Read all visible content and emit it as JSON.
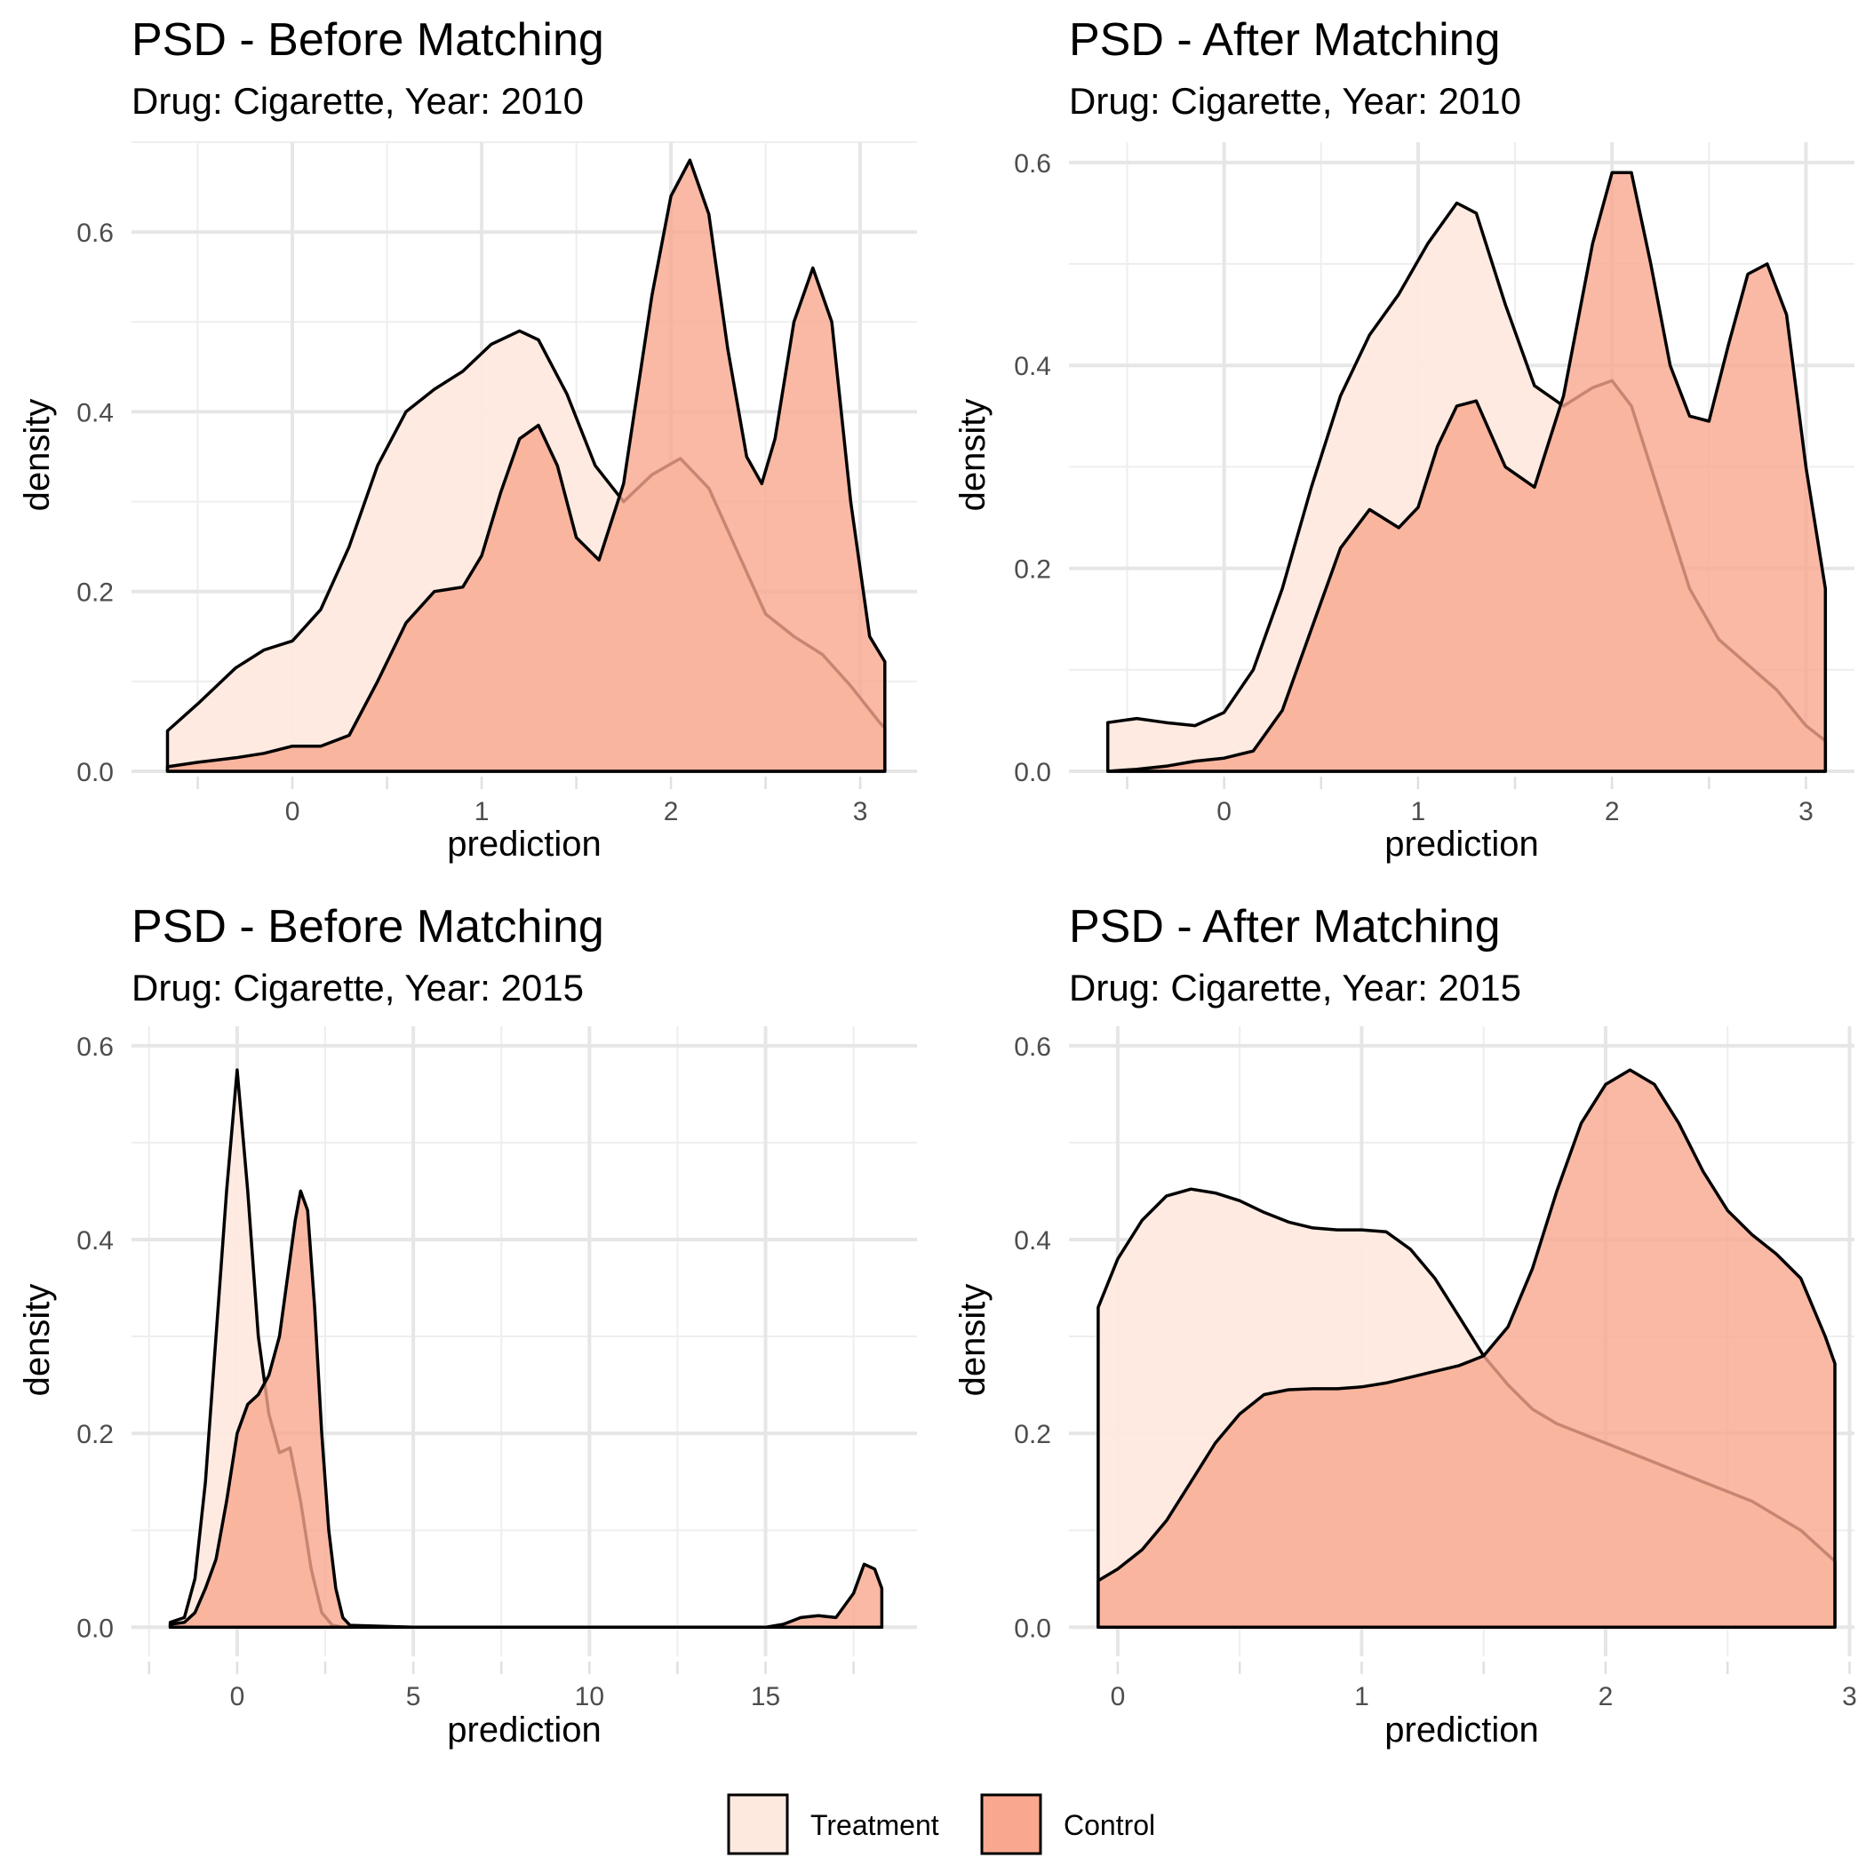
{
  "legend": {
    "items": [
      {
        "label": "Treatment",
        "color": "#FEE9DF"
      },
      {
        "label": "Control",
        "color": "#F9A88F"
      }
    ]
  },
  "chart_data": [
    {
      "type": "area",
      "title": "PSD - Before Matching",
      "subtitle": "Drug: Cigarette, Year: 2010",
      "xlabel": "prediction",
      "ylabel": "density",
      "xlim": [
        -0.85,
        3.3
      ],
      "ylim": [
        0,
        0.7
      ],
      "xticks": [
        0,
        1,
        2,
        3
      ],
      "xtick_labels": [
        "0",
        "1",
        "2",
        "3"
      ],
      "yticks": [
        0,
        0.2,
        0.4,
        0.6
      ],
      "ytick_labels": [
        "0.0",
        "0.2",
        "0.4",
        "0.6"
      ],
      "grid": true,
      "series": [
        {
          "name": "Treatment",
          "color": "#FEE9DF",
          "x": [
            -0.66,
            -0.5,
            -0.3,
            -0.15,
            0,
            0.15,
            0.3,
            0.45,
            0.6,
            0.75,
            0.9,
            1.05,
            1.2,
            1.3,
            1.45,
            1.6,
            1.75,
            1.9,
            2.05,
            2.2,
            2.35,
            2.5,
            2.65,
            2.8,
            2.95,
            3.1,
            3.13
          ],
          "y": [
            0.045,
            0.075,
            0.115,
            0.135,
            0.145,
            0.18,
            0.25,
            0.34,
            0.4,
            0.425,
            0.445,
            0.475,
            0.49,
            0.48,
            0.42,
            0.34,
            0.3,
            0.33,
            0.348,
            0.315,
            0.245,
            0.175,
            0.15,
            0.13,
            0.095,
            0.055,
            0.048
          ]
        },
        {
          "name": "Control",
          "color": "#F9A88F",
          "x": [
            -0.66,
            -0.5,
            -0.3,
            -0.15,
            0,
            0.15,
            0.3,
            0.45,
            0.6,
            0.75,
            0.9,
            1.0,
            1.1,
            1.2,
            1.3,
            1.4,
            1.5,
            1.62,
            1.75,
            1.9,
            2.0,
            2.1,
            2.2,
            2.3,
            2.4,
            2.48,
            2.55,
            2.65,
            2.75,
            2.85,
            2.95,
            3.05,
            3.13
          ],
          "y": [
            0.005,
            0.01,
            0.015,
            0.02,
            0.028,
            0.028,
            0.04,
            0.1,
            0.165,
            0.2,
            0.205,
            0.24,
            0.31,
            0.37,
            0.385,
            0.34,
            0.26,
            0.235,
            0.32,
            0.53,
            0.64,
            0.68,
            0.62,
            0.47,
            0.35,
            0.32,
            0.37,
            0.5,
            0.56,
            0.5,
            0.3,
            0.15,
            0.122
          ]
        }
      ]
    },
    {
      "type": "area",
      "title": "PSD - After Matching",
      "subtitle": "Drug: Cigarette, Year: 2010",
      "xlabel": "prediction",
      "ylabel": "density",
      "xlim": [
        -0.8,
        3.25
      ],
      "ylim": [
        0,
        0.62
      ],
      "xticks": [
        0,
        1,
        2,
        3
      ],
      "xtick_labels": [
        "0",
        "1",
        "2",
        "3"
      ],
      "yticks": [
        0,
        0.2,
        0.4,
        0.6
      ],
      "ytick_labels": [
        "0.0",
        "0.2",
        "0.4",
        "0.6"
      ],
      "grid": true,
      "series": [
        {
          "name": "Treatment",
          "color": "#FEE9DF",
          "x": [
            -0.6,
            -0.45,
            -0.3,
            -0.15,
            0,
            0.15,
            0.3,
            0.45,
            0.6,
            0.75,
            0.9,
            1.05,
            1.2,
            1.3,
            1.45,
            1.6,
            1.75,
            1.9,
            2.0,
            2.1,
            2.25,
            2.4,
            2.55,
            2.7,
            2.85,
            3.0,
            3.1
          ],
          "y": [
            0.048,
            0.052,
            0.048,
            0.045,
            0.058,
            0.1,
            0.18,
            0.28,
            0.37,
            0.43,
            0.47,
            0.52,
            0.56,
            0.55,
            0.46,
            0.38,
            0.36,
            0.378,
            0.385,
            0.36,
            0.27,
            0.18,
            0.13,
            0.105,
            0.08,
            0.045,
            0.03
          ]
        },
        {
          "name": "Control",
          "color": "#F9A88F",
          "x": [
            -0.6,
            -0.45,
            -0.3,
            -0.15,
            0,
            0.15,
            0.3,
            0.45,
            0.6,
            0.75,
            0.9,
            1.0,
            1.1,
            1.2,
            1.3,
            1.45,
            1.6,
            1.75,
            1.9,
            2.0,
            2.1,
            2.2,
            2.3,
            2.4,
            2.5,
            2.6,
            2.7,
            2.8,
            2.9,
            3.0,
            3.1
          ],
          "y": [
            0.0,
            0.002,
            0.005,
            0.01,
            0.013,
            0.02,
            0.06,
            0.14,
            0.22,
            0.258,
            0.24,
            0.26,
            0.32,
            0.36,
            0.365,
            0.3,
            0.28,
            0.37,
            0.52,
            0.59,
            0.59,
            0.5,
            0.4,
            0.35,
            0.345,
            0.42,
            0.49,
            0.5,
            0.45,
            0.3,
            0.18
          ]
        }
      ]
    },
    {
      "type": "area",
      "title": "PSD - Before Matching",
      "subtitle": "Drug: Cigarette, Year: 2015",
      "xlabel": "prediction",
      "ylabel": "density",
      "xlim": [
        -3,
        19.3
      ],
      "ylim": [
        -0.03,
        0.62
      ],
      "xticks": [
        0,
        5,
        10,
        15
      ],
      "xtick_labels": [
        "0",
        "5",
        "10",
        "15"
      ],
      "yticks": [
        0,
        0.2,
        0.4,
        0.6
      ],
      "ytick_labels": [
        "0.0",
        "0.2",
        "0.4",
        "0.6"
      ],
      "grid": true,
      "series": [
        {
          "name": "Treatment",
          "color": "#FEE9DF",
          "x": [
            -1.9,
            -1.5,
            -1.2,
            -0.9,
            -0.6,
            -0.3,
            0,
            0.3,
            0.6,
            0.9,
            1.2,
            1.5,
            1.8,
            2.1,
            2.4,
            2.7,
            3.0,
            5,
            10,
            15,
            16,
            17,
            17.5,
            18,
            18.3
          ],
          "y": [
            0.005,
            0.01,
            0.05,
            0.15,
            0.3,
            0.45,
            0.575,
            0.45,
            0.3,
            0.22,
            0.18,
            0.185,
            0.13,
            0.06,
            0.015,
            0.002,
            0,
            0,
            0,
            0,
            0,
            0,
            0,
            0,
            0
          ]
        },
        {
          "name": "Control",
          "color": "#F9A88F",
          "x": [
            -1.9,
            -1.5,
            -1.2,
            -0.9,
            -0.6,
            -0.3,
            0,
            0.3,
            0.6,
            0.9,
            1.2,
            1.5,
            1.65,
            1.8,
            2.0,
            2.2,
            2.4,
            2.6,
            2.8,
            3.0,
            3.2,
            5,
            10,
            15,
            15.5,
            16,
            16.5,
            17,
            17.5,
            17.8,
            18.1,
            18.3
          ],
          "y": [
            0.003,
            0.005,
            0.015,
            0.04,
            0.07,
            0.13,
            0.2,
            0.23,
            0.24,
            0.26,
            0.3,
            0.38,
            0.42,
            0.45,
            0.43,
            0.33,
            0.2,
            0.1,
            0.04,
            0.01,
            0.002,
            0,
            0,
            0,
            0.003,
            0.01,
            0.012,
            0.01,
            0.035,
            0.065,
            0.06,
            0.04
          ]
        }
      ]
    },
    {
      "type": "area",
      "title": "PSD - After Matching",
      "subtitle": "Drug: Cigarette, Year: 2015",
      "xlabel": "prediction",
      "ylabel": "density",
      "xlim": [
        -0.2,
        3.02
      ],
      "ylim": [
        -0.03,
        0.62
      ],
      "xticks": [
        0,
        1,
        2,
        3
      ],
      "xtick_labels": [
        "0",
        "1",
        "2",
        "3"
      ],
      "yticks": [
        0,
        0.2,
        0.4,
        0.6
      ],
      "ytick_labels": [
        "0.0",
        "0.2",
        "0.4",
        "0.6"
      ],
      "grid": true,
      "series": [
        {
          "name": "Treatment",
          "color": "#FEE9DF",
          "x": [
            -0.08,
            0,
            0.1,
            0.2,
            0.3,
            0.4,
            0.5,
            0.6,
            0.7,
            0.8,
            0.9,
            1.0,
            1.1,
            1.2,
            1.3,
            1.4,
            1.5,
            1.6,
            1.7,
            1.8,
            2.0,
            2.2,
            2.4,
            2.6,
            2.8,
            2.94
          ],
          "y": [
            0.33,
            0.38,
            0.42,
            0.445,
            0.452,
            0.448,
            0.44,
            0.428,
            0.418,
            0.412,
            0.41,
            0.41,
            0.408,
            0.39,
            0.36,
            0.32,
            0.28,
            0.25,
            0.225,
            0.21,
            0.19,
            0.17,
            0.15,
            0.13,
            0.1,
            0.068
          ]
        },
        {
          "name": "Control",
          "color": "#F9A88F",
          "x": [
            -0.08,
            0,
            0.1,
            0.2,
            0.3,
            0.4,
            0.5,
            0.6,
            0.7,
            0.8,
            0.9,
            1.0,
            1.1,
            1.2,
            1.3,
            1.4,
            1.5,
            1.6,
            1.7,
            1.8,
            1.9,
            2.0,
            2.1,
            2.2,
            2.3,
            2.4,
            2.5,
            2.6,
            2.7,
            2.8,
            2.9,
            2.94
          ],
          "y": [
            0.048,
            0.06,
            0.08,
            0.11,
            0.15,
            0.19,
            0.22,
            0.24,
            0.245,
            0.246,
            0.246,
            0.248,
            0.252,
            0.258,
            0.264,
            0.27,
            0.28,
            0.31,
            0.37,
            0.45,
            0.52,
            0.56,
            0.575,
            0.56,
            0.52,
            0.47,
            0.43,
            0.405,
            0.385,
            0.36,
            0.3,
            0.272
          ]
        }
      ]
    }
  ]
}
